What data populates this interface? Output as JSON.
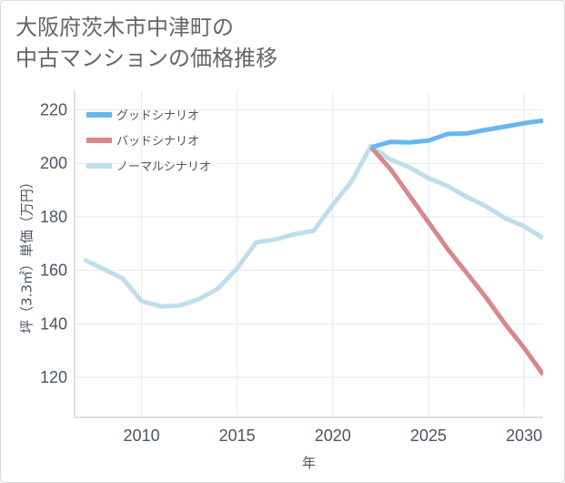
{
  "title": {
    "line1": "大阪府茨木市中津町の",
    "line2": "中古マンションの価格推移"
  },
  "chart_data": {
    "type": "line",
    "title": "大阪府茨木市中津町の中古マンションの価格推移",
    "xlabel": "年",
    "ylabel": "坪（3.3㎡）単価（万円）",
    "xlim": [
      2006.5,
      2031
    ],
    "ylim": [
      105,
      227
    ],
    "xticks": [
      2010,
      2015,
      2020,
      2025,
      2030
    ],
    "yticks": [
      120,
      140,
      160,
      180,
      200,
      220
    ],
    "legend_position": "top-left",
    "series": [
      {
        "name": "グッドシナリオ",
        "color": "#67b7ef",
        "x": [
          2022,
          2023,
          2024,
          2025,
          2026,
          2027,
          2028,
          2029,
          2030,
          2031
        ],
        "values": [
          206,
          208,
          207.8,
          208.5,
          211,
          211.2,
          212.5,
          213.7,
          215,
          216
        ]
      },
      {
        "name": "バッドシナリオ",
        "color": "#d9878c",
        "x": [
          2022,
          2023,
          2024,
          2025,
          2026,
          2027,
          2028,
          2029,
          2030,
          2031
        ],
        "values": [
          206,
          198,
          188,
          178,
          168,
          159,
          150,
          140,
          131,
          121
        ]
      },
      {
        "name": "ノーマルシナリオ",
        "color": "#bfdeec",
        "x": [
          2007,
          2008,
          2009,
          2010,
          2011,
          2012,
          2013,
          2014,
          2015,
          2016,
          2017,
          2018,
          2019,
          2020,
          2021,
          2022,
          2023,
          2024,
          2025,
          2026,
          2027,
          2028,
          2029,
          2030,
          2031
        ],
        "values": [
          164,
          160.5,
          157,
          148.5,
          146.5,
          146.8,
          149.2,
          153.2,
          160.8,
          170.5,
          171.5,
          173.5,
          174.8,
          184.5,
          193.5,
          206.5,
          201.5,
          198.5,
          194.5,
          191.5,
          187.5,
          184,
          179.5,
          176.5,
          172
        ]
      }
    ]
  }
}
